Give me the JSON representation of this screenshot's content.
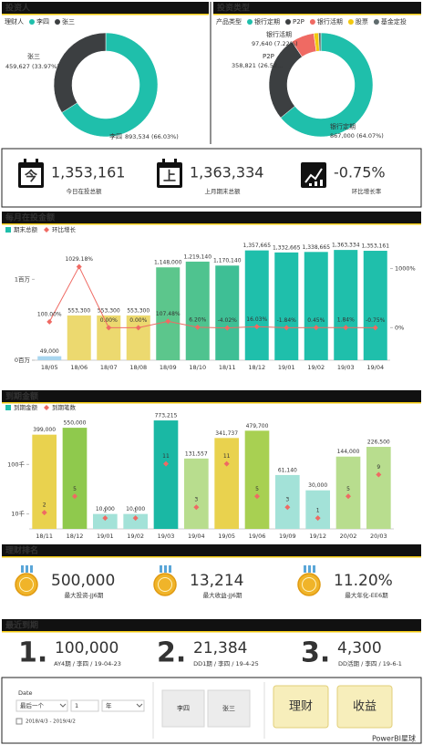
{
  "chart_data": [
    {
      "type": "donut",
      "title": "投资人",
      "legend_title": "理财人",
      "categories": [
        "李四",
        "张三"
      ],
      "values": [
        893534,
        459627
      ],
      "value_labels": [
        "893,534 (66.03%)",
        "459,627 (33.97%)"
      ],
      "colors": [
        "#1fbfab",
        "#3c3f41"
      ]
    },
    {
      "type": "donut",
      "title": "投资类型",
      "legend_title": "产品类型",
      "categories": [
        "银行定期",
        "P2P",
        "银行活期",
        "股票",
        "基金定投"
      ],
      "values": [
        867000,
        358821,
        97640,
        20000,
        9700
      ],
      "value_labels": [
        "867,000 (64.07%)",
        "358,821 (26.52...",
        "97,640 (7.22%)",
        null,
        null
      ],
      "colors": [
        "#1fbfab",
        "#3c3f41",
        "#ef6a63",
        "#f2c80f",
        "#5f6b6d"
      ]
    },
    {
      "type": "combo",
      "title": "每月在投金额",
      "categories": [
        "18/05",
        "18/06",
        "18/07",
        "18/08",
        "18/09",
        "18/10",
        "18/11",
        "18/12",
        "19/01",
        "19/02",
        "19/03",
        "19/04"
      ],
      "series": [
        {
          "name": "期末总额",
          "color": "#1fbfab",
          "colors": [
            "#a9d6ef",
            "#ecd96f",
            "#ecd96f",
            "#ecd96f",
            "#5cc68c",
            "#4fc38f",
            "#3ebf95",
            "#1fbfab",
            "#1fbfab",
            "#1fbfab",
            "#1fbfab",
            "#1fbfab"
          ],
          "values": [
            49000,
            553300,
            553300,
            553300,
            1148000,
            1219140,
            1170140,
            1357665,
            1332665,
            1338665,
            1363334,
            1353161
          ],
          "value_labels": [
            "49,000",
            "553,300",
            "553,300",
            "553,300",
            "1,148,000",
            "1,219,140",
            "1,170,140",
            "1,357,665",
            "1,332,665",
            "1,338,665",
            "1,363,334",
            "1,353,161"
          ]
        },
        {
          "name": "环比增长",
          "color": "#ef6a63",
          "axis": "y2",
          "connected": true,
          "values": [
            100,
            1029.18,
            0,
            0,
            107.48,
            6.2,
            -4.02,
            16.03,
            -1.84,
            0.45,
            1.84,
            -0.75
          ],
          "value_labels": [
            "100.00%",
            "1029.18%",
            "0.00%",
            "0.00%",
            "107.48%",
            "6.20%",
            "-4.02%",
            "16.03%",
            "-1.84%",
            "0.45%",
            "1.84%",
            "-0.75%"
          ]
        }
      ],
      "ylim": [
        0,
        1500000
      ],
      "yticks": [
        {
          "value": 0,
          "label": "0百万"
        },
        {
          "value": 1000000,
          "label": "1百万"
        }
      ],
      "y2lim": [
        -550,
        1500
      ],
      "y2ticks": [
        {
          "value": 0,
          "label": "0%"
        },
        {
          "value": 1000,
          "label": "1000%"
        }
      ]
    },
    {
      "type": "combo",
      "title": "到期金额",
      "log_scale": true,
      "categories": [
        "18/11",
        "18/12",
        "19/01",
        "19/02",
        "19/03",
        "19/04",
        "19/05",
        "19/06",
        "19/09",
        "19/12",
        "20/02",
        "20/03"
      ],
      "series": [
        {
          "name": "到期金额",
          "color": "#1fbfab",
          "colors": [
            "#e9d24e",
            "#8fc94d",
            "#a3e2d8",
            "#a3e2d8",
            "#1ab8a4",
            "#b8dd8e",
            "#e9d24e",
            "#a8d052",
            "#a3e2d8",
            "#a3e2d8",
            "#b8dd8e",
            "#b8dd8e"
          ],
          "values": [
            399000,
            550000,
            10000,
            10000,
            773215,
            131557,
            341737,
            479700,
            61140,
            30000,
            144000,
            226500
          ],
          "value_labels": [
            "399,000",
            "550,000",
            "10,000",
            "10,000",
            "773,215",
            "131,557",
            "341,737",
            "479,700",
            "61,140",
            "30,000",
            "144,000",
            "226,500"
          ]
        },
        {
          "name": "到期笔数",
          "color": "#ef6a63",
          "axis": "y2",
          "connected": false,
          "values": [
            2,
            5,
            1,
            1,
            11,
            3,
            11,
            5,
            3,
            1,
            5,
            9
          ]
        }
      ],
      "ylim": [
        5000,
        1000000
      ],
      "yticks": [
        {
          "value": 10000,
          "label": "10千"
        },
        {
          "value": 100000,
          "label": "100千"
        }
      ],
      "y2lim": [
        -1,
        20
      ]
    }
  ],
  "kpis": [
    {
      "icon": "今",
      "value": "1,353,161",
      "label": "今日在投总额"
    },
    {
      "icon": "上",
      "value": "1,363,334",
      "label": "上月期末总额"
    },
    {
      "value": "-0.75%",
      "label": "环比增长率"
    }
  ],
  "ranking": {
    "title": "理财排名",
    "items": [
      {
        "value": "500,000",
        "label": "最大投资-JJ6期"
      },
      {
        "value": "13,214",
        "label": "最大收益-JJ6期"
      },
      {
        "value": "11.20%",
        "label": "最大年化-EE6期"
      }
    ]
  },
  "recent": {
    "title": "最近到期",
    "items": [
      {
        "rank": "1.",
        "color": "#e0251b",
        "value": "100,000",
        "label": "AY4期 / 李四 / 19-04-23"
      },
      {
        "rank": "2.",
        "color": "#f39a1e",
        "value": "21,384",
        "label": "DD1期 / 李四 / 19-4-25"
      },
      {
        "rank": "3.",
        "color": "#d9a77a",
        "value": "4,300",
        "label": "DD活期 / 李四 / 19-6-1"
      }
    ]
  },
  "filters": {
    "date_title": "Date",
    "period": "最后一个",
    "count": "1",
    "unit": "年",
    "range": "2018/4/3 - 2019/4/2",
    "people": [
      "李四",
      "张三"
    ],
    "buttons": [
      "理财",
      "收益"
    ]
  },
  "watermark": "PowerBI星球"
}
